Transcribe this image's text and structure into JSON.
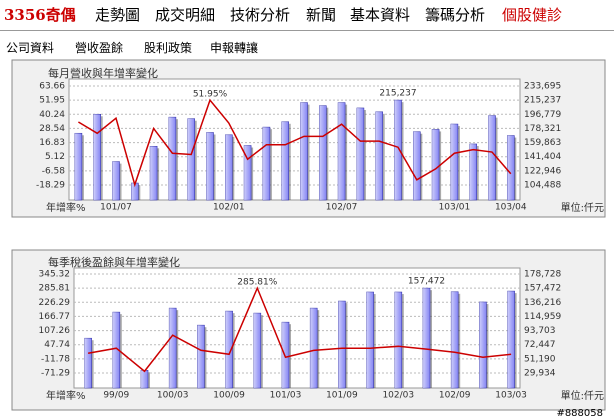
{
  "nav": {
    "stock": "3356奇偶",
    "links": [
      "走勢圖",
      "成交明細",
      "技術分析",
      "新聞",
      "基本資料",
      "籌碼分析",
      "個股健診"
    ]
  },
  "subnav": [
    "公司資料",
    "營收盈餘",
    "股利政策",
    "申報轉讓"
  ],
  "chart_data": [
    {
      "type": "combo",
      "title": "每月營收與年增率變化",
      "ylabel": "年增率%",
      "y2label": "單位:仟元",
      "grid": true,
      "categories": [
        null,
        null,
        "101/07",
        null,
        null,
        null,
        null,
        null,
        "102/01",
        null,
        null,
        null,
        null,
        null,
        "102/07",
        null,
        null,
        null,
        null,
        null,
        "103/01",
        null,
        null,
        "103/04"
      ],
      "ylim": [
        -30.71,
        69.46
      ],
      "yticks": [
        63.66,
        51.95,
        40.24,
        28.54,
        16.83,
        5.12,
        -6.58,
        -18.29
      ],
      "y2lim": [
        84907,
        242833
      ],
      "y2ticks": [
        {
          "value": 233695,
          "label": "233,695"
        },
        {
          "value": 215237,
          "label": "215,237"
        },
        {
          "value": 196779,
          "label": "196,779"
        },
        {
          "value": 178321,
          "label": "178,321"
        },
        {
          "value": 159863,
          "label": "159,863"
        },
        {
          "value": 141404,
          "label": "141,404"
        },
        {
          "value": 122946,
          "label": "122,946"
        },
        {
          "value": 104488,
          "label": "104,488"
        }
      ],
      "series": [
        {
          "type": "bar",
          "axis": "y2",
          "color": "#8484f4",
          "values": [
            172000,
            196800,
            135000,
            107000,
            155000,
            193000,
            191000,
            173000,
            170000,
            156000,
            180000,
            187000,
            212000,
            208000,
            212000,
            205000,
            200000,
            215237,
            174000,
            177000,
            184000,
            158000,
            195000,
            169000
          ],
          "value_labels": [
            null,
            null,
            null,
            null,
            null,
            null,
            null,
            null,
            null,
            null,
            null,
            null,
            null,
            null,
            null,
            null,
            null,
            "215,237",
            null,
            null,
            null,
            null,
            null,
            null
          ]
        },
        {
          "type": "line",
          "color": "#cc0000",
          "values": [
            33.9,
            24.5,
            37,
            -18,
            28.5,
            8,
            7,
            51.95,
            33,
            3,
            15,
            15,
            22,
            22,
            32,
            18,
            18,
            13,
            -14,
            -5,
            8,
            11,
            9,
            -9
          ],
          "value_labels": [
            null,
            null,
            null,
            null,
            null,
            null,
            null,
            "51.95%",
            null,
            null,
            null,
            null,
            null,
            null,
            null,
            null,
            null,
            null,
            null,
            null,
            null,
            null,
            null,
            null
          ]
        }
      ]
    },
    {
      "type": "combo",
      "title": "每季稅後盈餘與年增率變化",
      "ylabel": "年增率%",
      "y2label": "單位:仟元",
      "grid": true,
      "categories": [
        null,
        "99/09",
        null,
        "100/03",
        null,
        "100/09",
        null,
        "101/03",
        null,
        "101/09",
        null,
        "102/03",
        null,
        "102/09",
        null,
        "103/03"
      ],
      "ylim": [
        -134.43,
        370.58
      ],
      "yticks": [
        345.32,
        285.81,
        226.29,
        166.77,
        107.26,
        47.74,
        -11.78,
        -71.29
      ],
      "y2lim": [
        7385,
        187748
      ],
      "y2ticks": [
        {
          "value": 178728,
          "label": "178,728"
        },
        {
          "value": 157472,
          "label": "157,472"
        },
        {
          "value": 136216,
          "label": "136,216"
        },
        {
          "value": 114959,
          "label": "114,959"
        },
        {
          "value": 93703,
          "label": "93,703"
        },
        {
          "value": 72447,
          "label": "72,447"
        },
        {
          "value": 51190,
          "label": "51,190"
        },
        {
          "value": 29934,
          "label": "29,934"
        }
      ],
      "series": [
        {
          "type": "bar",
          "axis": "y2",
          "color": "#8484f4",
          "values": [
            82200,
            121400,
            34000,
            127400,
            101800,
            122900,
            119900,
            106300,
            127400,
            138000,
            151600,
            151600,
            157472,
            152000,
            136600,
            153000
          ],
          "value_labels": [
            null,
            null,
            null,
            null,
            null,
            null,
            null,
            null,
            null,
            null,
            null,
            null,
            "157,472",
            null,
            null,
            null
          ]
        },
        {
          "type": "line",
          "color": "#cc0000",
          "values": [
            11.8,
            33,
            -64,
            87.8,
            24.5,
            7.6,
            285.81,
            -5,
            24,
            33,
            33,
            41,
            29,
            16,
            -5,
            7.6
          ],
          "value_labels": [
            null,
            null,
            null,
            null,
            null,
            null,
            "285.81%",
            null,
            null,
            null,
            null,
            null,
            null,
            null,
            null,
            null
          ]
        }
      ]
    }
  ],
  "watermark": "#888058"
}
